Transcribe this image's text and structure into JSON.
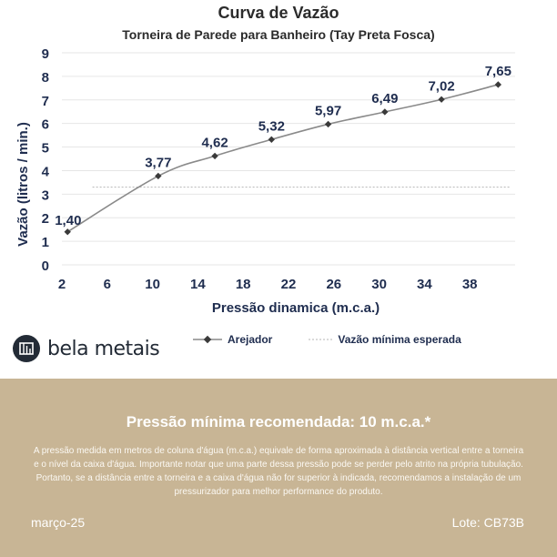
{
  "colors": {
    "navy": "#1f2d4f",
    "line": "#8a8a8a",
    "marker": "#3a3a3a",
    "panel": "#c8b595",
    "dashed": "#b5b5b5"
  },
  "chart_data": {
    "type": "line",
    "title": "Curva de Vazão",
    "subtitle": "Torneira de Parede para Banheiro (Tay Preta Fosca)",
    "xlabel": "Pressão dinamica (m.c.a.)",
    "ylabel": "Vazão (litros / min.)",
    "xlim": [
      2,
      42
    ],
    "ylim": [
      0,
      9
    ],
    "xticks": [
      "2",
      "6",
      "10",
      "14",
      "18",
      "22",
      "26",
      "30",
      "34",
      "38"
    ],
    "yticks": [
      "0",
      "1",
      "2",
      "3",
      "4",
      "5",
      "6",
      "7",
      "8",
      "9"
    ],
    "grid": "horizontal",
    "legend_position": "bottom",
    "series": [
      {
        "name": "Arejador",
        "x": [
          2.5,
          10.5,
          15.5,
          20.5,
          25.5,
          30.5,
          35.5,
          40.5
        ],
        "values": [
          1.4,
          3.77,
          4.62,
          5.32,
          5.97,
          6.49,
          7.02,
          7.65
        ],
        "labels": [
          "1,40",
          "3,77",
          "4,62",
          "5,32",
          "5,97",
          "6,49",
          "7,02",
          "7,65"
        ]
      }
    ],
    "reference_line": {
      "name": "Vazão mínima esperada",
      "value": 3.3
    }
  },
  "brand": {
    "name": "bela metais",
    "icon": "bela-metais-logo-icon"
  },
  "footer": {
    "recommendation": "Pressão mínima recomendada: 10 m.c.a.*",
    "note": "A pressão medida em metros de coluna d'água (m.c.a.) equivale de forma aproximada à distância vertical entre a torneira e o nível da caixa d'água. Importante notar que uma parte dessa pressão pode se perder pelo atrito na própria tubulação. Portanto, se a distância entre a torneira e a caixa d'água não for superior à indicada, recomendamos a instalação de um pressurizador para melhor performance do produto.",
    "date": "março-25",
    "lot": "Lote: CB73B"
  }
}
